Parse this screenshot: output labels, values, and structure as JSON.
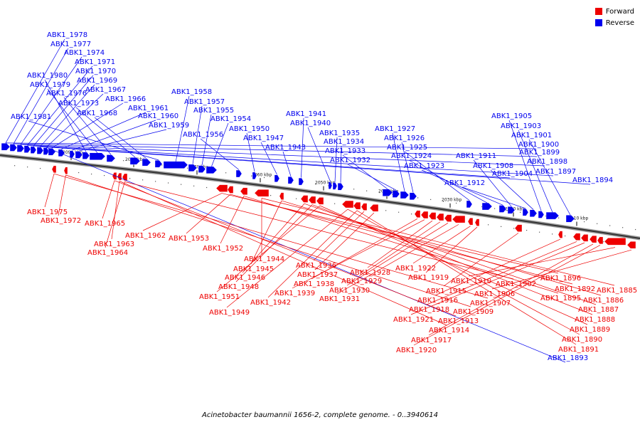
{
  "title": "Acinetobacter baumannii 1656-2, complete genome. - 0..3940614",
  "legend": [
    {
      "label": "Forward",
      "color": "#ee0000"
    },
    {
      "label": "Reverse",
      "color": "#0000ee"
    }
  ],
  "ticks": [
    "2090 kbp",
    "2080 kbp",
    "2070 kbp",
    "2060 kbp",
    "2050 kbp",
    "2040 kbp",
    "2030 kbp",
    "2020 kbp",
    "2010 kbp"
  ],
  "reverse_genes": [
    "ABK1_1978",
    "ABK1_1977",
    "ABK1_1974",
    "ABK1_1971",
    "ABK1_1970",
    "ABK1_1969",
    "ABK1_1967",
    "ABK1_1966",
    "ABK1_1961",
    "ABK1_1960",
    "ABK1_1959",
    "ABK1_1980",
    "ABK1_1979",
    "ABK1_1976",
    "ABK1_1973",
    "ABK1_1968",
    "ABK1_1981",
    "ABK1_1958",
    "ABK1_1957",
    "ABK1_1955",
    "ABK1_1954",
    "ABK1_1956",
    "ABK1_1950",
    "ABK1_1947",
    "ABK1_1943",
    "ABK1_1941",
    "ABK1_1940",
    "ABK1_1935",
    "ABK1_1934",
    "ABK1_1933",
    "ABK1_1932",
    "ABK1_1927",
    "ABK1_1926",
    "ABK1_1925",
    "ABK1_1924",
    "ABK1_1923",
    "ABK1_1911",
    "ABK1_1912",
    "ABK1_1908",
    "ABK1_1905",
    "ABK1_1903",
    "ABK1_1901",
    "ABK1_1900",
    "ABK1_1899",
    "ABK1_1898",
    "ABK1_1897",
    "ABK1_1904",
    "ABK1_1894",
    "ABK1_1893"
  ],
  "forward_genes": [
    "ABK1_1975",
    "ABK1_1972",
    "ABK1_1965",
    "ABK1_1963",
    "ABK1_1964",
    "ABK1_1962",
    "ABK1_1953",
    "ABK1_1952",
    "ABK1_1944",
    "ABK1_1945",
    "ABK1_1946",
    "ABK1_1948",
    "ABK1_1951",
    "ABK1_1949",
    "ABK1_1942",
    "ABK1_1936",
    "ABK1_1937",
    "ABK1_1938",
    "ABK1_1939",
    "ABK1_1928",
    "ABK1_1929",
    "ABK1_1930",
    "ABK1_1931",
    "ABK1_1922",
    "ABK1_1919",
    "ABK1_1915",
    "ABK1_1916",
    "ABK1_1918",
    "ABK1_1921",
    "ABK1_1917",
    "ABK1_1920",
    "ABK1_1910",
    "ABK1_1906",
    "ABK1_1907",
    "ABK1_1909",
    "ABK1_1913",
    "ABK1_1914",
    "ABK1_1902",
    "ABK1_1896",
    "ABK1_1892",
    "ABK1_1895",
    "ABK1_1885",
    "ABK1_1886",
    "ABK1_1887",
    "ABK1_1888",
    "ABK1_1889",
    "ABK1_1890",
    "ABK1_1891"
  ]
}
